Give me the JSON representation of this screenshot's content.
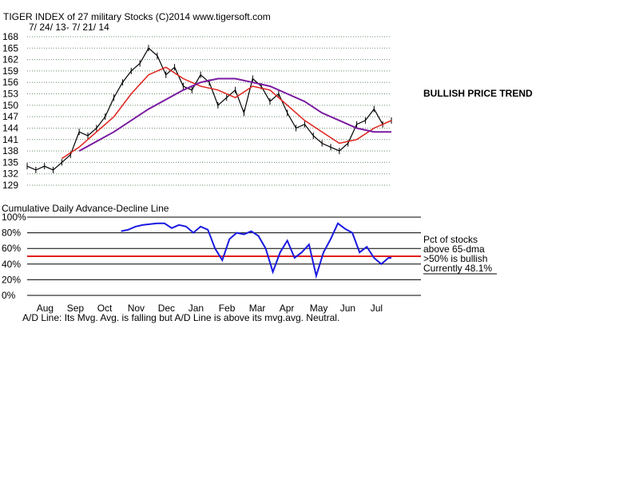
{
  "chart_data": [
    {
      "type": "line",
      "title": "TIGER INDEX of  27 military Stocks  (C)2014  www.tigersoft.com",
      "subtitle": "7/ 24/ 13-  7/ 21/ 14",
      "annotation": "BULLISH PRICE TREND",
      "y_ticks": [
        168,
        165,
        162,
        159,
        156,
        153,
        150,
        147,
        144,
        141,
        138,
        135,
        132,
        129
      ],
      "ylim": [
        129,
        168
      ],
      "grid": true,
      "colors": {
        "price": "#000000",
        "ma_short": "#e0201a",
        "ma_long": "#7a1aa0",
        "ad_line": "#1a1ae0",
        "ad_ma": "#e0201a"
      },
      "series": [
        {
          "name": "",
          "kind": "price",
          "x": [
            0,
            6,
            12,
            18,
            24,
            30,
            36,
            42,
            48,
            54,
            60,
            66,
            72,
            78,
            84,
            90,
            96,
            102,
            108,
            114,
            120,
            126,
            132,
            138,
            144,
            150,
            156,
            162,
            168,
            174,
            180,
            186,
            192,
            198,
            204,
            210,
            216,
            222,
            228,
            234,
            240,
            246,
            252
          ],
          "values": [
            134,
            133,
            134,
            133,
            135,
            137,
            143,
            142,
            144,
            147,
            152,
            156,
            159,
            161,
            165,
            163,
            158,
            160,
            155,
            154,
            158,
            156,
            150,
            152,
            154,
            148,
            157,
            155,
            151,
            153,
            148,
            144,
            145,
            142,
            140,
            139,
            138,
            140,
            145,
            146,
            149,
            145,
            146
          ]
        },
        {
          "name": "",
          "kind": "ma_short",
          "x": [
            24,
            36,
            48,
            60,
            72,
            84,
            96,
            108,
            120,
            132,
            144,
            156,
            168,
            180,
            192,
            204,
            216,
            228,
            240,
            252
          ],
          "values": [
            136,
            139,
            143,
            147,
            153,
            158,
            160,
            157,
            155,
            154,
            152,
            155,
            154,
            150,
            146,
            143,
            140,
            141,
            144,
            146
          ]
        },
        {
          "name": "",
          "kind": "ma_long",
          "x": [
            36,
            60,
            84,
            108,
            120,
            132,
            144,
            156,
            168,
            180,
            192,
            204,
            216,
            228,
            240,
            252
          ],
          "values": [
            138,
            143,
            149,
            154,
            156,
            157,
            157,
            156,
            155,
            153,
            151,
            148,
            146,
            144,
            143,
            143
          ]
        }
      ]
    },
    {
      "type": "line",
      "title": "Cumulative Daily Advance-Decline Line",
      "y_ticks": [
        "100%",
        "80%",
        "60%",
        "40%",
        "20%",
        "0%"
      ],
      "ylim": [
        0,
        100
      ],
      "x_ticks": [
        "Aug",
        "Sep",
        "Oct",
        "Nov",
        "Dec",
        "Jan",
        "Feb",
        "Mar",
        "Apr",
        "May",
        "Jun",
        "Jul"
      ],
      "threshold": 50,
      "legend_text": [
        "Pct of stocks",
        "above 65-dma",
        ">50% is bullish",
        "Currently  48.1%"
      ],
      "series": [
        {
          "name": "",
          "kind": "pct_above_65dma",
          "x": [
            65,
            70,
            75,
            80,
            85,
            90,
            95,
            100,
            105,
            110,
            115,
            120,
            125,
            130,
            135,
            140,
            145,
            150,
            155,
            160,
            165,
            170,
            175,
            180,
            185,
            190,
            195,
            200,
            205,
            210,
            215,
            220,
            225,
            230,
            235,
            240,
            245,
            250,
            252
          ],
          "values": [
            82,
            84,
            88,
            90,
            91,
            92,
            92,
            86,
            90,
            88,
            80,
            88,
            84,
            60,
            45,
            72,
            80,
            78,
            82,
            76,
            60,
            30,
            55,
            70,
            48,
            55,
            65,
            25,
            55,
            72,
            92,
            85,
            80,
            55,
            62,
            48,
            40,
            48,
            48
          ]
        }
      ],
      "footer": "A/D Line: Its Mvg. Avg. is falling but A/D Line is above its mvg.avg. Neutral."
    }
  ]
}
